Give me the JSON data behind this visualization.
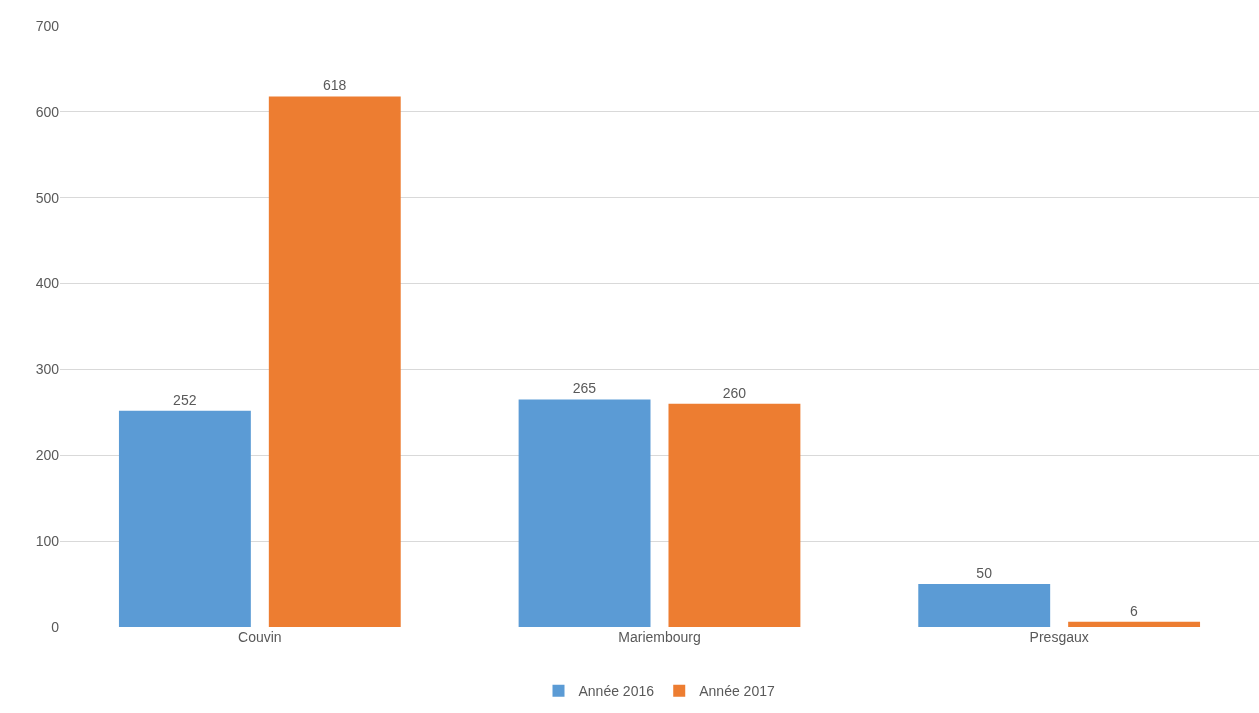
{
  "chart_data": {
    "type": "bar",
    "categories": [
      "Couvin",
      "Mariembourg",
      "Presgaux"
    ],
    "series": [
      {
        "name": "Année 2016",
        "color": "#5b9bd5",
        "values": [
          252,
          265,
          50
        ]
      },
      {
        "name": "Année 2017",
        "color": "#ed7d31",
        "values": [
          618,
          260,
          6
        ]
      }
    ],
    "ylim": [
      0,
      700
    ],
    "yticks": [
      0,
      100,
      200,
      300,
      400,
      500,
      600,
      700
    ],
    "grid": "y",
    "legend": "bottom",
    "data_labels": true
  }
}
